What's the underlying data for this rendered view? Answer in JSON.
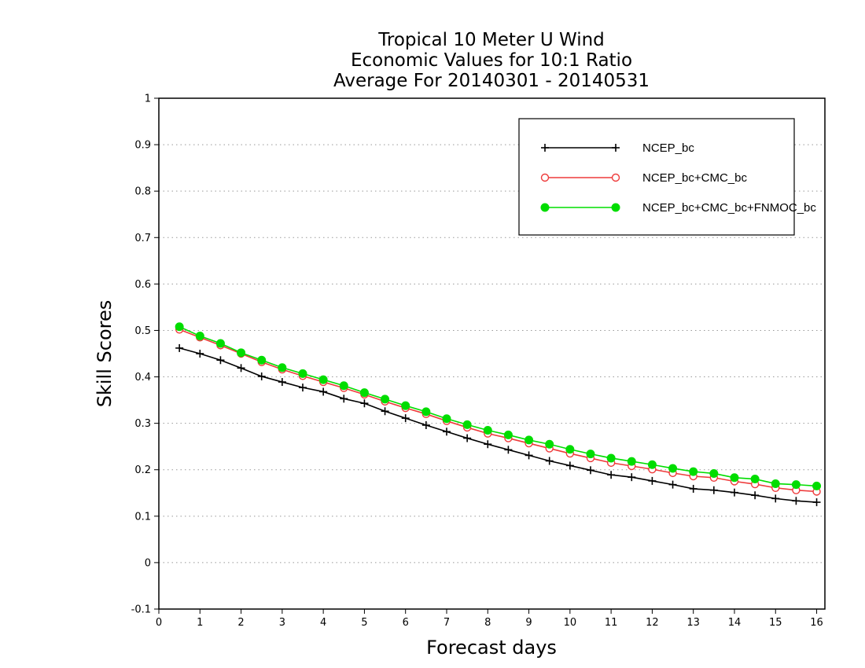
{
  "chart_data": {
    "type": "line",
    "title": [
      "Tropical 10 Meter U Wind",
      "Economic Values for 10:1 Ratio",
      "Average For 20140301 - 20140531"
    ],
    "xlabel": "Forecast days",
    "ylabel": "Skill Scores",
    "xlim": [
      0,
      16.2
    ],
    "ylim": [
      -0.1,
      1
    ],
    "xticks": [
      "0",
      "1",
      "2",
      "3",
      "4",
      "5",
      "6",
      "7",
      "8",
      "9",
      "10",
      "11",
      "12",
      "13",
      "14",
      "15",
      "16"
    ],
    "yticks": [
      "-0.1",
      "0",
      "0.1",
      "0.2",
      "0.3",
      "0.4",
      "0.5",
      "0.6",
      "0.7",
      "0.8",
      "0.9",
      "1"
    ],
    "grid": "horizontal dotted",
    "legend_position": "top-right",
    "x": [
      0.5,
      1,
      1.5,
      2,
      2.5,
      3,
      3.5,
      4,
      4.5,
      5,
      5.5,
      6,
      6.5,
      7,
      7.5,
      8,
      8.5,
      9,
      9.5,
      10,
      10.5,
      11,
      11.5,
      12,
      12.5,
      13,
      13.5,
      14,
      14.5,
      15,
      15.5,
      16
    ],
    "series": [
      {
        "name": "NCEP_bc",
        "color": "#000000",
        "marker": "plus",
        "values": [
          0.462,
          0.45,
          0.436,
          0.419,
          0.401,
          0.389,
          0.377,
          0.368,
          0.353,
          0.343,
          0.326,
          0.311,
          0.296,
          0.282,
          0.268,
          0.255,
          0.243,
          0.231,
          0.219,
          0.209,
          0.199,
          0.189,
          0.184,
          0.176,
          0.168,
          0.159,
          0.156,
          0.151,
          0.145,
          0.138,
          0.133,
          0.13
        ]
      },
      {
        "name": "NCEP_bc+CMC_bc",
        "color": "#ee3b3b",
        "marker": "open-circle",
        "values": [
          0.502,
          0.485,
          0.468,
          0.45,
          0.432,
          0.416,
          0.402,
          0.389,
          0.376,
          0.362,
          0.347,
          0.333,
          0.32,
          0.305,
          0.291,
          0.278,
          0.268,
          0.257,
          0.246,
          0.235,
          0.225,
          0.215,
          0.208,
          0.201,
          0.193,
          0.186,
          0.183,
          0.175,
          0.169,
          0.161,
          0.156,
          0.153
        ]
      },
      {
        "name": "NCEP_bc+CMC_bc+FNMOC_bc",
        "color": "#00dd00",
        "marker": "filled-circle",
        "values": [
          0.508,
          0.488,
          0.472,
          0.452,
          0.436,
          0.42,
          0.407,
          0.394,
          0.381,
          0.366,
          0.352,
          0.338,
          0.325,
          0.31,
          0.297,
          0.285,
          0.275,
          0.264,
          0.255,
          0.244,
          0.234,
          0.225,
          0.218,
          0.211,
          0.203,
          0.196,
          0.192,
          0.183,
          0.18,
          0.17,
          0.168,
          0.165
        ]
      }
    ]
  }
}
